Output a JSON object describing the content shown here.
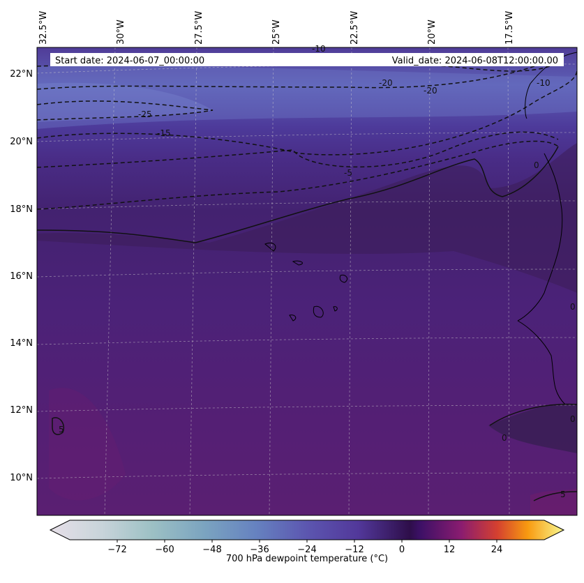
{
  "header": {
    "start_date": "Start date: 2024-06-07_00:00:00",
    "valid_date": "Valid_date: 2024-06-08T12:00:00.00"
  },
  "map": {
    "variable": "700 hPa dewpoint temperature",
    "longitude_labels": [
      "32.5°W",
      "30°W",
      "27.5°W",
      "25°W",
      "22.5°W",
      "20°W",
      "17.5°W"
    ],
    "latitude_labels": [
      "22°N",
      "20°N",
      "18°N",
      "16°N",
      "14°N",
      "12°N",
      "10°N"
    ],
    "contour_labels": [
      "-10",
      "-20",
      "-20",
      "-10",
      "-25",
      "-15",
      "-5",
      "0",
      "0",
      "0",
      "5",
      "5",
      "0"
    ],
    "colors": {
      "dry_band": "#5a5ab0",
      "mid_band": "#4a2a8a",
      "base_field": "#4e2478",
      "warm_field": "#5a1f72",
      "coast_dark": "#3a1e55"
    }
  },
  "colorbar": {
    "label": "700 hPa dewpoint temperature (°C)",
    "ticks": [
      "−72",
      "−60",
      "−48",
      "−36",
      "−24",
      "−12",
      "0",
      "12",
      "24"
    ],
    "range": [
      -84,
      36
    ]
  }
}
